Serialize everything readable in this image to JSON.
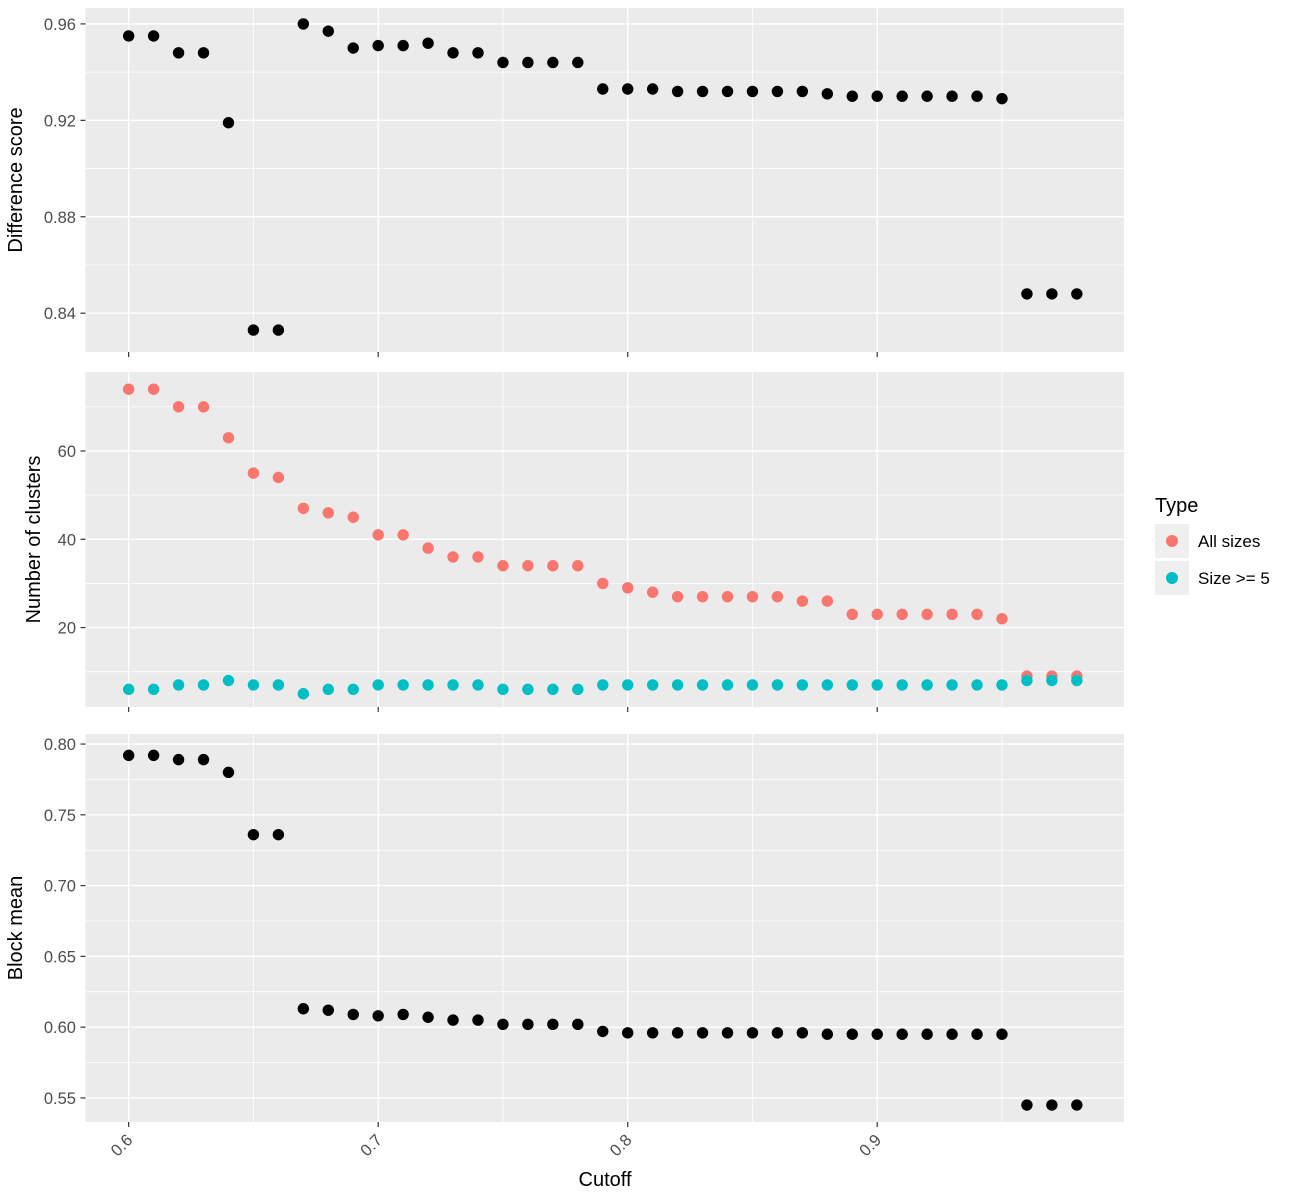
{
  "figure": {
    "x_axis": {
      "label": "Cutoff",
      "lim": [
        0.5827,
        0.9989
      ],
      "ticks": [
        {
          "v": 0.6,
          "label": "0.6"
        },
        {
          "v": 0.7,
          "label": "0.7"
        },
        {
          "v": 0.8,
          "label": "0.8"
        },
        {
          "v": 0.9,
          "label": "0.9"
        }
      ],
      "minor": [
        0.65,
        0.75,
        0.85,
        0.95
      ]
    },
    "legend": {
      "title": "Type",
      "items": [
        {
          "label": "All sizes",
          "color": "#F8766D"
        },
        {
          "label": "Size >= 5",
          "color": "#00BFC4"
        }
      ]
    },
    "colors": {
      "panel_background": "#EBEBEB",
      "gridline": "#FFFFFF",
      "point_default": "#000000",
      "tick_text": "#4D4D4D",
      "legend_key_background": "#EFEFEF"
    }
  },
  "cutoffs": [
    0.6,
    0.61,
    0.62,
    0.63,
    0.64,
    0.65,
    0.66,
    0.67,
    0.68,
    0.69,
    0.7,
    0.71,
    0.72,
    0.73,
    0.74,
    0.75,
    0.76,
    0.77,
    0.78,
    0.79,
    0.8,
    0.81,
    0.82,
    0.83,
    0.84,
    0.85,
    0.86,
    0.87,
    0.88,
    0.89,
    0.9,
    0.91,
    0.92,
    0.93,
    0.94,
    0.95,
    0.96,
    0.97,
    0.98
  ],
  "chart_data": [
    {
      "type": "scatter",
      "name": "difference-score",
      "title": "",
      "xlabel": "Cutoff",
      "ylabel": "Difference score",
      "ylim": [
        0.8239,
        0.9666
      ],
      "yticks": [
        {
          "v": 0.84,
          "label": "0.84"
        },
        {
          "v": 0.88,
          "label": "0.88"
        },
        {
          "v": 0.92,
          "label": "0.92"
        },
        {
          "v": 0.96,
          "label": "0.96"
        }
      ],
      "y_minor": [
        0.86,
        0.9,
        0.94
      ],
      "series": [
        {
          "name": "Difference score",
          "color": "#000000",
          "values": [
            0.955,
            0.955,
            0.948,
            0.948,
            0.919,
            0.833,
            0.833,
            0.96,
            0.957,
            0.95,
            0.951,
            0.951,
            0.952,
            0.948,
            0.948,
            0.944,
            0.944,
            0.944,
            0.944,
            0.933,
            0.933,
            0.933,
            0.932,
            0.932,
            0.932,
            0.932,
            0.932,
            0.932,
            0.931,
            0.93,
            0.93,
            0.93,
            0.93,
            0.93,
            0.93,
            0.929,
            0.848,
            0.848,
            0.848
          ]
        }
      ]
    },
    {
      "type": "scatter",
      "name": "number-of-clusters",
      "title": "",
      "xlabel": "Cutoff",
      "ylabel": "Number of clusters",
      "ylim": [
        2.0,
        77.9
      ],
      "yticks": [
        {
          "v": 20,
          "label": "20"
        },
        {
          "v": 40,
          "label": "40"
        },
        {
          "v": 60,
          "label": "60"
        }
      ],
      "y_minor": [
        10,
        30,
        50,
        70
      ],
      "series": [
        {
          "name": "All sizes",
          "color": "#F8766D",
          "values": [
            74,
            74,
            70,
            70,
            63,
            55,
            54,
            47,
            46,
            45,
            41,
            41,
            38,
            36,
            36,
            34,
            34,
            34,
            34,
            30,
            29,
            28,
            27,
            27,
            27,
            27,
            27,
            26,
            26,
            23,
            23,
            23,
            23,
            23,
            23,
            22,
            9,
            9,
            9
          ]
        },
        {
          "name": "Size >= 5",
          "color": "#00BFC4",
          "values": [
            6,
            6,
            7,
            7,
            8,
            7,
            7,
            5,
            6,
            6,
            7,
            7,
            7,
            7,
            7,
            6,
            6,
            6,
            6,
            7,
            7,
            7,
            7,
            7,
            7,
            7,
            7,
            7,
            7,
            7,
            7,
            7,
            7,
            7,
            7,
            7,
            8,
            8,
            8
          ]
        }
      ]
    },
    {
      "type": "scatter",
      "name": "block-mean",
      "title": "",
      "xlabel": "Cutoff",
      "ylabel": "Block mean",
      "ylim": [
        0.533,
        0.8071
      ],
      "yticks": [
        {
          "v": 0.55,
          "label": "0.55"
        },
        {
          "v": 0.6,
          "label": "0.60"
        },
        {
          "v": 0.65,
          "label": "0.65"
        },
        {
          "v": 0.7,
          "label": "0.70"
        },
        {
          "v": 0.75,
          "label": "0.75"
        },
        {
          "v": 0.8,
          "label": "0.80"
        }
      ],
      "y_minor": [
        0.575,
        0.625,
        0.675,
        0.725,
        0.775
      ],
      "series": [
        {
          "name": "Block mean",
          "color": "#000000",
          "values": [
            0.792,
            0.792,
            0.789,
            0.789,
            0.78,
            0.736,
            0.736,
            0.613,
            0.612,
            0.609,
            0.608,
            0.609,
            0.607,
            0.605,
            0.605,
            0.602,
            0.602,
            0.602,
            0.602,
            0.597,
            0.596,
            0.596,
            0.596,
            0.596,
            0.596,
            0.596,
            0.596,
            0.596,
            0.595,
            0.595,
            0.595,
            0.595,
            0.595,
            0.595,
            0.595,
            0.595,
            0.545,
            0.545,
            0.545
          ]
        }
      ]
    }
  ]
}
